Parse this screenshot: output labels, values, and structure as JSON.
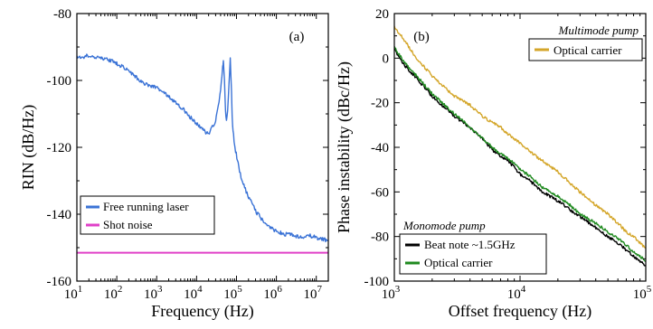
{
  "chart_data": [
    {
      "type": "line",
      "panel_label": "(a)",
      "xlabel": "Frequency (Hz)",
      "ylabel": "RIN (dB/Hz)",
      "xscale": "log",
      "xlim": [
        10,
        20000000
      ],
      "ylim": [
        -160,
        -80
      ],
      "x_ticks": [
        {
          "v": 10,
          "base": "10",
          "exp": "1"
        },
        {
          "v": 100,
          "base": "10",
          "exp": "2"
        },
        {
          "v": 1000,
          "base": "10",
          "exp": "3"
        },
        {
          "v": 10000,
          "base": "10",
          "exp": "4"
        },
        {
          "v": 100000,
          "base": "10",
          "exp": "5"
        },
        {
          "v": 1000000,
          "base": "10",
          "exp": "6"
        },
        {
          "v": 10000000,
          "base": "10",
          "exp": "7"
        }
      ],
      "y_ticks": [
        "-160",
        "-140",
        "-120",
        "-100",
        "-80"
      ],
      "legend_position": "bottom-left",
      "series": [
        {
          "name": "Free running laser",
          "color": "#3b73d6",
          "x": [
            10,
            15,
            20,
            30,
            50,
            70,
            100,
            150,
            200,
            300,
            500,
            700,
            1000,
            1500,
            2000,
            3000,
            5000,
            7000,
            10000,
            15000,
            20000,
            25000,
            30000,
            35000,
            40000,
            45000,
            47000,
            50000,
            53000,
            56000,
            60000,
            65000,
            70000,
            75000,
            78000,
            82000,
            87000,
            95000,
            110000,
            130000,
            160000,
            200000,
            250000,
            300000,
            400000,
            500000,
            700000,
            1000000,
            1500000,
            2000000,
            3000000,
            5000000,
            7000000,
            10000000,
            15000000,
            20000000
          ],
          "y": [
            -93,
            -93,
            -92.5,
            -93,
            -93.5,
            -94,
            -95,
            -96,
            -97.5,
            -99,
            -101,
            -101.5,
            -102,
            -103.5,
            -105,
            -106.5,
            -109,
            -111,
            -113,
            -115,
            -116,
            -114,
            -112,
            -108,
            -103,
            -96,
            -93.5,
            -100,
            -109,
            -112,
            -109,
            -101,
            -93.5,
            -103,
            -111,
            -115,
            -118,
            -121,
            -125,
            -129,
            -132,
            -135,
            -137,
            -139,
            -141,
            -142.5,
            -144,
            -145,
            -146,
            -146,
            -146.5,
            -147,
            -146.5,
            -147,
            -147.5,
            -148
          ]
        },
        {
          "name": "Shot noise",
          "color": "#e040c8",
          "x": [
            10,
            20000000
          ],
          "y": [
            -151.5,
            -151.5
          ]
        }
      ]
    },
    {
      "type": "line",
      "panel_label": "(b)",
      "xlabel": "Offset frequency (Hz)",
      "ylabel": "Phase instability (dBc/Hz)",
      "xscale": "log",
      "xlim": [
        1000,
        100000
      ],
      "ylim": [
        -100,
        20
      ],
      "x_ticks": [
        {
          "v": 1000,
          "base": "10",
          "exp": "3"
        },
        {
          "v": 10000,
          "base": "10",
          "exp": "4"
        },
        {
          "v": 100000,
          "base": "10",
          "exp": "5"
        }
      ],
      "y_ticks": [
        "-100",
        "-80",
        "-60",
        "-40",
        "-20",
        "0",
        "20"
      ],
      "legend_top_title": "Multimode pump",
      "legend_bottom_title": "Monomode pump",
      "series": [
        {
          "name": "Optical carrier",
          "group": "Multimode pump",
          "color": "#d4a62a",
          "x": [
            1000,
            1200,
            1500,
            2000,
            2500,
            3000,
            4000,
            5000,
            6000,
            7000,
            8000,
            9000,
            10000,
            12000,
            15000,
            20000,
            25000,
            30000,
            40000,
            50000,
            60000,
            70000,
            80000,
            90000,
            100000
          ],
          "y": [
            14,
            8,
            0,
            -8,
            -13,
            -17,
            -21,
            -26,
            -29,
            -31,
            -34,
            -36,
            -38,
            -42,
            -46,
            -51,
            -56,
            -60,
            -66,
            -70,
            -74,
            -78,
            -80,
            -83,
            -85
          ]
        },
        {
          "name": "Beat note ~1.5GHz",
          "group": "Monomode pump",
          "color": "#000000",
          "x": [
            1000,
            1200,
            1500,
            2000,
            2500,
            3000,
            4000,
            5000,
            6000,
            7000,
            8000,
            9000,
            10000,
            12000,
            15000,
            20000,
            25000,
            30000,
            40000,
            50000,
            60000,
            70000,
            80000,
            90000,
            100000
          ],
          "y": [
            4,
            -3,
            -9,
            -17,
            -22,
            -26,
            -31,
            -36,
            -41,
            -44,
            -46,
            -49,
            -52,
            -55,
            -60,
            -64,
            -68,
            -71,
            -76,
            -80,
            -83,
            -86,
            -89,
            -91,
            -93
          ]
        },
        {
          "name": "Optical carrier",
          "group": "Monomode pump",
          "color": "#1f8a1f",
          "x": [
            1000,
            1200,
            1500,
            2000,
            2500,
            3000,
            4000,
            5000,
            6000,
            7000,
            8000,
            9000,
            10000,
            12000,
            15000,
            20000,
            25000,
            30000,
            40000,
            50000,
            60000,
            70000,
            80000,
            90000,
            100000
          ],
          "y": [
            5,
            -2,
            -8,
            -16,
            -21,
            -25,
            -31,
            -36,
            -40,
            -43,
            -45,
            -47,
            -50,
            -53,
            -58,
            -62,
            -66,
            -70,
            -74,
            -78,
            -81,
            -84,
            -87,
            -89,
            -91
          ]
        }
      ]
    }
  ]
}
